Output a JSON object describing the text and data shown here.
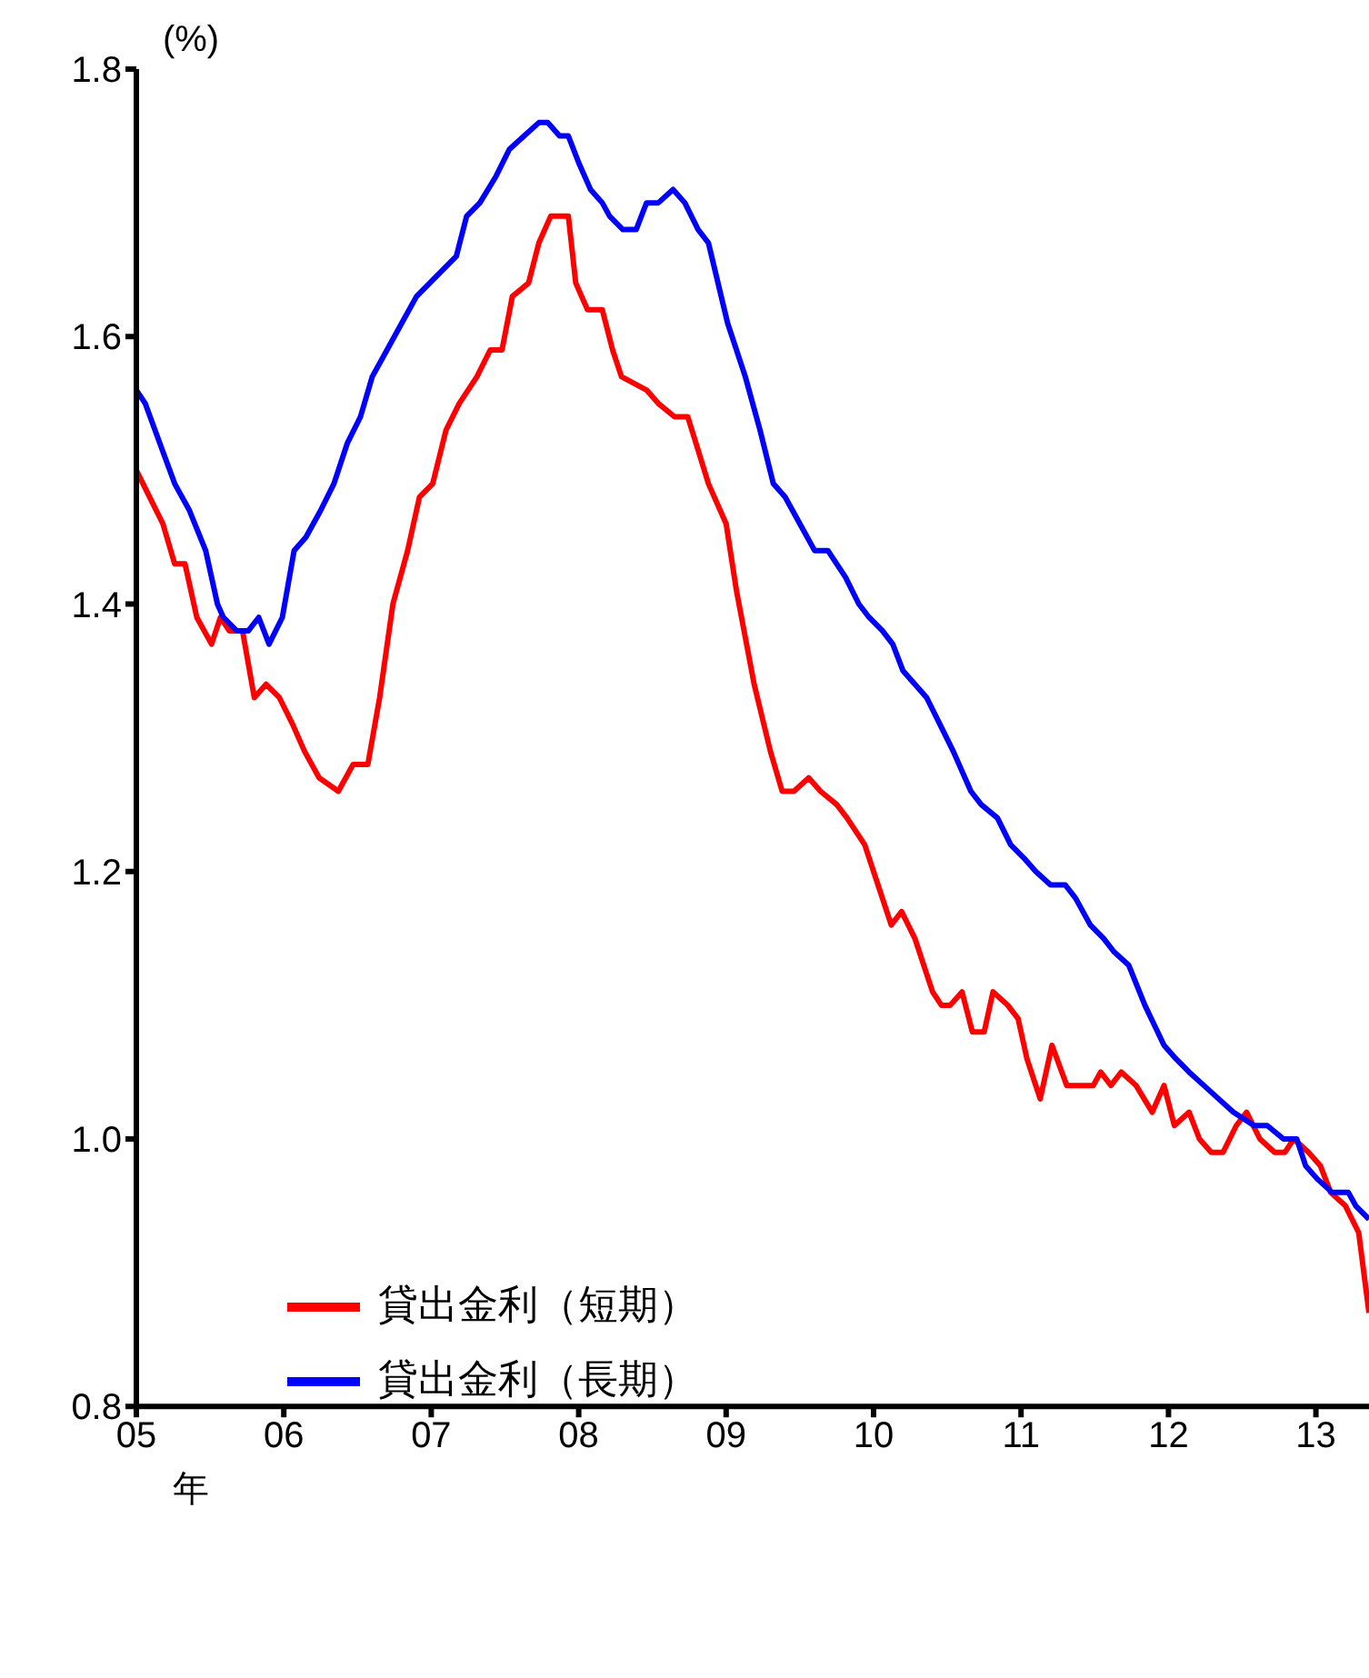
{
  "chart_data": {
    "type": "line",
    "ylabel": "(%)",
    "xlabel": "年",
    "xlim": [
      2005,
      2013.36
    ],
    "xticks": [
      {
        "value": 2005,
        "label": "05"
      },
      {
        "value": 2006,
        "label": "06"
      },
      {
        "value": 2007,
        "label": "07"
      },
      {
        "value": 2008,
        "label": "08"
      },
      {
        "value": 2009,
        "label": "09"
      },
      {
        "value": 2010,
        "label": "10"
      },
      {
        "value": 2011,
        "label": "11"
      },
      {
        "value": 2012,
        "label": "12"
      },
      {
        "value": 2013,
        "label": "13"
      }
    ],
    "ylim": [
      0.8,
      1.8
    ],
    "yticks": [
      0.8,
      {
        "value": 1.0,
        "label": "1.0"
      },
      1.2,
      1.4,
      1.6,
      1.8
    ],
    "legend": "bottom left",
    "grid": false,
    "series": [
      {
        "name": "貸出金利（短期）",
        "color": "#ff0000",
        "x": [
          2005.0,
          2005.09,
          2005.18,
          2005.26,
          2005.33,
          2005.41,
          2005.51,
          2005.57,
          2005.63,
          2005.72,
          2005.8,
          2005.88,
          2005.97,
          2006.06,
          2006.14,
          2006.24,
          2006.37,
          2006.47,
          2006.57,
          2006.65,
          2006.74,
          2006.84,
          2006.92,
          2007.01,
          2007.1,
          2007.19,
          2007.31,
          2007.4,
          2007.48,
          2007.55,
          2007.66,
          2007.73,
          2007.81,
          2007.89,
          2007.93,
          2007.98,
          2008.06,
          2008.16,
          2008.23,
          2008.29,
          2008.46,
          2008.54,
          2008.65,
          2008.74,
          2008.88,
          2009.0,
          2009.07,
          2009.19,
          2009.3,
          2009.38,
          2009.46,
          2009.56,
          2009.64,
          2009.75,
          2009.82,
          2009.94,
          2010.03,
          2010.12,
          2010.19,
          2010.28,
          2010.34,
          2010.4,
          2010.46,
          2010.52,
          2010.6,
          2010.67,
          2010.75,
          2010.81,
          2010.91,
          2010.98,
          2011.04,
          2011.13,
          2011.21,
          2011.31,
          2011.41,
          2011.49,
          2011.54,
          2011.61,
          2011.68,
          2011.78,
          2011.89,
          2011.97,
          2012.04,
          2012.14,
          2012.21,
          2012.29,
          2012.37,
          2012.46,
          2012.53,
          2012.62,
          2012.72,
          2012.79,
          2012.85,
          2012.95,
          2013.03,
          2013.1,
          2013.2,
          2013.29,
          2013.36
        ],
        "values": [
          1.5,
          1.48,
          1.46,
          1.43,
          1.43,
          1.39,
          1.37,
          1.39,
          1.38,
          1.38,
          1.33,
          1.34,
          1.33,
          1.31,
          1.29,
          1.27,
          1.26,
          1.28,
          1.28,
          1.33,
          1.4,
          1.44,
          1.48,
          1.49,
          1.53,
          1.55,
          1.57,
          1.59,
          1.59,
          1.63,
          1.64,
          1.67,
          1.69,
          1.69,
          1.69,
          1.64,
          1.62,
          1.62,
          1.59,
          1.57,
          1.56,
          1.55,
          1.54,
          1.54,
          1.49,
          1.46,
          1.41,
          1.34,
          1.29,
          1.26,
          1.26,
          1.27,
          1.26,
          1.25,
          1.24,
          1.22,
          1.19,
          1.16,
          1.17,
          1.15,
          1.13,
          1.11,
          1.1,
          1.1,
          1.11,
          1.08,
          1.08,
          1.11,
          1.1,
          1.09,
          1.06,
          1.03,
          1.07,
          1.04,
          1.04,
          1.04,
          1.05,
          1.04,
          1.05,
          1.04,
          1.02,
          1.04,
          1.01,
          1.02,
          1.0,
          0.99,
          0.99,
          1.01,
          1.02,
          1.0,
          0.99,
          0.99,
          1.0,
          0.99,
          0.98,
          0.96,
          0.95,
          0.93,
          0.87
        ]
      },
      {
        "name": "貸出金利（長期）",
        "color": "#0000ff",
        "x": [
          2005.0,
          2005.06,
          2005.16,
          2005.26,
          2005.36,
          2005.47,
          2005.55,
          2005.59,
          2005.68,
          2005.76,
          2005.83,
          2005.9,
          2005.99,
          2006.07,
          2006.15,
          2006.25,
          2006.34,
          2006.43,
          2006.52,
          2006.6,
          2006.7,
          2006.8,
          2006.9,
          2006.99,
          2007.08,
          2007.17,
          2007.24,
          2007.33,
          2007.44,
          2007.53,
          2007.63,
          2007.73,
          2007.79,
          2007.87,
          2007.93,
          2008.0,
          2008.08,
          2008.16,
          2008.21,
          2008.3,
          2008.39,
          2008.46,
          2008.54,
          2008.64,
          2008.72,
          2008.81,
          2008.88,
          2009.01,
          2009.13,
          2009.23,
          2009.32,
          2009.4,
          2009.5,
          2009.6,
          2009.69,
          2009.81,
          2009.9,
          2009.97,
          2010.06,
          2010.13,
          2010.2,
          2010.28,
          2010.36,
          2010.45,
          2010.54,
          2010.66,
          2010.73,
          2010.84,
          2010.93,
          2011.02,
          2011.1,
          2011.2,
          2011.3,
          2011.37,
          2011.47,
          2011.56,
          2011.63,
          2011.73,
          2011.84,
          2011.97,
          2012.05,
          2012.14,
          2012.24,
          2012.34,
          2012.44,
          2012.58,
          2012.67,
          2012.78,
          2012.87,
          2012.93,
          2013.01,
          2013.11,
          2013.22,
          2013.27,
          2013.36
        ],
        "values": [
          1.56,
          1.55,
          1.52,
          1.49,
          1.47,
          1.44,
          1.4,
          1.39,
          1.38,
          1.38,
          1.39,
          1.37,
          1.39,
          1.44,
          1.45,
          1.47,
          1.49,
          1.52,
          1.54,
          1.57,
          1.59,
          1.61,
          1.63,
          1.64,
          1.65,
          1.66,
          1.69,
          1.7,
          1.72,
          1.74,
          1.75,
          1.76,
          1.76,
          1.75,
          1.75,
          1.73,
          1.71,
          1.7,
          1.69,
          1.68,
          1.68,
          1.7,
          1.7,
          1.71,
          1.7,
          1.68,
          1.67,
          1.61,
          1.57,
          1.53,
          1.49,
          1.48,
          1.46,
          1.44,
          1.44,
          1.42,
          1.4,
          1.39,
          1.38,
          1.37,
          1.35,
          1.34,
          1.33,
          1.31,
          1.29,
          1.26,
          1.25,
          1.24,
          1.22,
          1.21,
          1.2,
          1.19,
          1.19,
          1.18,
          1.16,
          1.15,
          1.14,
          1.13,
          1.1,
          1.07,
          1.06,
          1.05,
          1.04,
          1.03,
          1.02,
          1.01,
          1.01,
          1.0,
          1.0,
          0.98,
          0.97,
          0.96,
          0.96,
          0.95,
          0.94
        ]
      }
    ]
  }
}
